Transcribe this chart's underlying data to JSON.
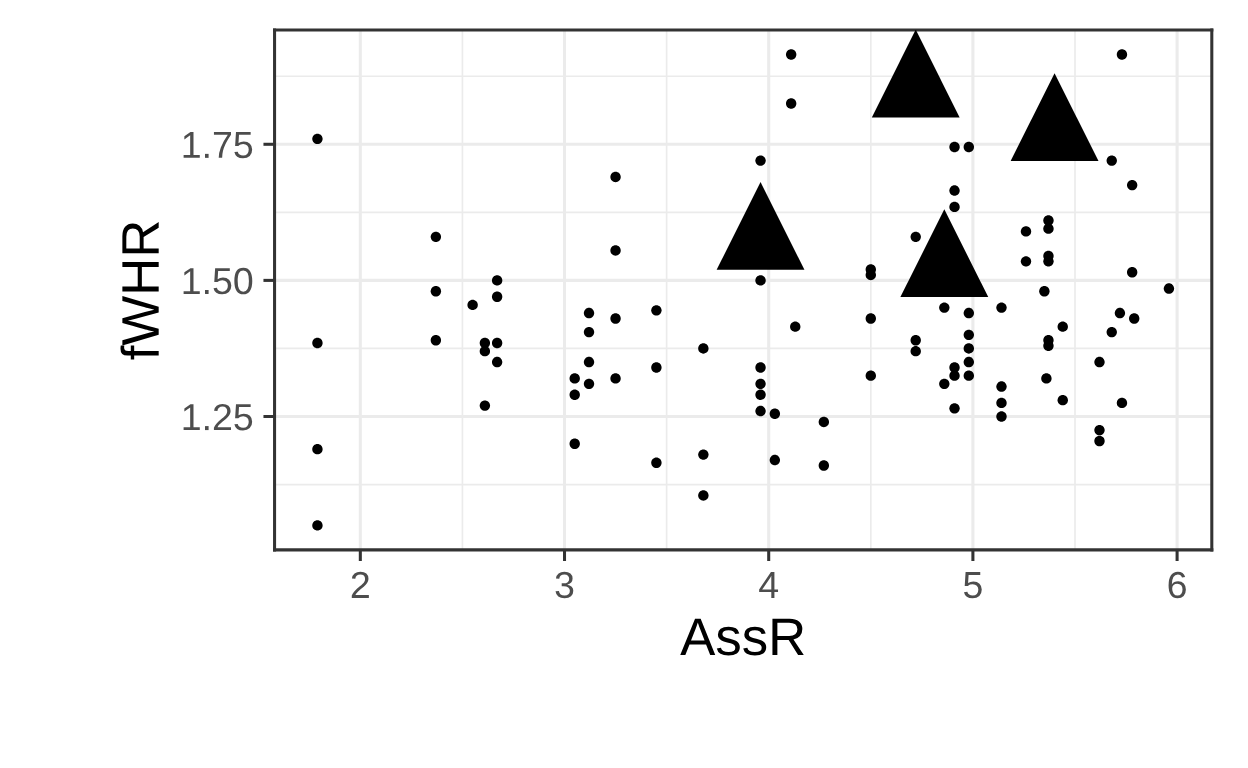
{
  "chart_data": {
    "type": "scatter",
    "xlabel": "AssR",
    "ylabel": "fWHR",
    "xlim": [
      1.58,
      6.17
    ],
    "ylim": [
      1.005,
      1.96
    ],
    "xticks": [
      2,
      3,
      4,
      5,
      6
    ],
    "yticks": [
      {
        "value": 1.25,
        "label": "1.25"
      },
      {
        "value": 1.5,
        "label": "1.50"
      },
      {
        "value": 1.75,
        "label": "1.75"
      }
    ],
    "grid": true,
    "legend": false,
    "series": [
      {
        "marker": "circle",
        "color": "#000000",
        "x": [
          1.79,
          1.79,
          1.79,
          1.79,
          2.37,
          2.37,
          2.37,
          2.55,
          2.67,
          2.67,
          2.61,
          2.61,
          2.67,
          2.67,
          2.61,
          3.05,
          3.05,
          3.05,
          3.12,
          3.12,
          3.12,
          3.12,
          3.25,
          3.25,
          3.25,
          3.25,
          3.45,
          3.45,
          3.45,
          3.68,
          3.68,
          3.68,
          3.96,
          3.96,
          3.96,
          3.96,
          3.96,
          3.96,
          4.03,
          4.03,
          4.11,
          4.11,
          4.13,
          4.27,
          4.27,
          4.5,
          4.5,
          4.5,
          4.5,
          4.91,
          4.98,
          4.91,
          4.91,
          4.72,
          4.86,
          4.98,
          4.98,
          4.98,
          4.98,
          4.98,
          4.91,
          4.91,
          4.86,
          4.91,
          4.72,
          4.72,
          5.14,
          5.14,
          5.14,
          5.14,
          5.26,
          5.26,
          5.37,
          5.37,
          5.37,
          5.37,
          5.35,
          5.44,
          5.37,
          5.37,
          5.36,
          5.44,
          5.73,
          5.68,
          5.78,
          5.78,
          5.96,
          5.72,
          5.79,
          5.68,
          5.62,
          5.73,
          5.62,
          5.62
        ],
        "values": [
          1.76,
          1.385,
          1.19,
          1.05,
          1.58,
          1.48,
          1.39,
          1.455,
          1.5,
          1.47,
          1.385,
          1.37,
          1.385,
          1.35,
          1.27,
          1.32,
          1.29,
          1.2,
          1.44,
          1.405,
          1.35,
          1.31,
          1.69,
          1.555,
          1.43,
          1.32,
          1.445,
          1.34,
          1.165,
          1.375,
          1.18,
          1.105,
          1.72,
          1.5,
          1.34,
          1.31,
          1.29,
          1.26,
          1.255,
          1.17,
          1.915,
          1.825,
          1.415,
          1.24,
          1.16,
          1.52,
          1.43,
          1.325,
          1.51,
          1.745,
          1.745,
          1.665,
          1.635,
          1.58,
          1.45,
          1.44,
          1.4,
          1.375,
          1.35,
          1.325,
          1.34,
          1.325,
          1.31,
          1.265,
          1.39,
          1.37,
          1.45,
          1.305,
          1.275,
          1.25,
          1.59,
          1.535,
          1.61,
          1.595,
          1.545,
          1.535,
          1.48,
          1.415,
          1.39,
          1.38,
          1.32,
          1.28,
          1.915,
          1.72,
          1.675,
          1.515,
          1.485,
          1.44,
          1.43,
          1.405,
          1.35,
          1.275,
          1.225,
          1.205
        ]
      },
      {
        "marker": "triangle",
        "color": "#000000",
        "x": [
          3.96,
          4.72,
          5.4,
          4.86
        ],
        "values": [
          1.6,
          1.88,
          1.8,
          1.55
        ]
      }
    ]
  }
}
